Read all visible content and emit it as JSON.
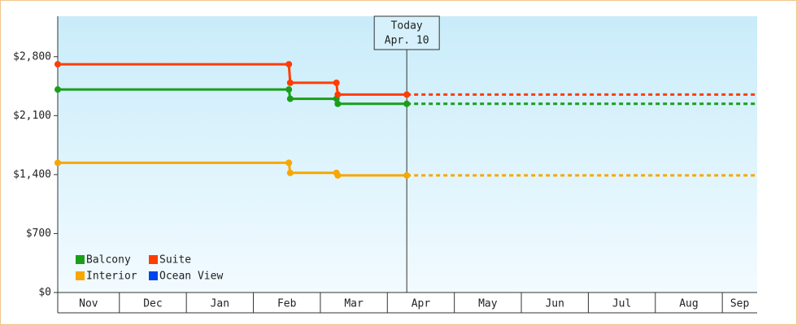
{
  "chart_data": {
    "type": "line",
    "xlim": [
      -0.92,
      9.52
    ],
    "xticks": [
      {
        "value": -1,
        "label": "Nov"
      },
      {
        "value": 0,
        "label": "Dec"
      },
      {
        "value": 1,
        "label": "Jan"
      },
      {
        "value": 2,
        "label": "Feb"
      },
      {
        "value": 3,
        "label": "Mar"
      },
      {
        "value": 4,
        "label": "Apr"
      },
      {
        "value": 5,
        "label": "May"
      },
      {
        "value": 6,
        "label": "Jun"
      },
      {
        "value": 7,
        "label": "Jul"
      },
      {
        "value": 8,
        "label": "Aug"
      },
      {
        "value": 9,
        "label": "Sep"
      }
    ],
    "ylim": [
      0,
      3280
    ],
    "yticks": [
      {
        "value": 0,
        "label": "$0"
      },
      {
        "value": 700,
        "label": "$700"
      },
      {
        "value": 1400,
        "label": "$1,400"
      },
      {
        "value": 2100,
        "label": "$2,100"
      },
      {
        "value": 2800,
        "label": "$2,800"
      }
    ],
    "today": {
      "x": 4.29,
      "label": "Today",
      "date": "Apr. 10"
    },
    "legend": "bottom-left",
    "series": [
      {
        "name": "Balcony",
        "color": "#1a9e1a",
        "x": [
          -0.92,
          2.53,
          2.55,
          3.24,
          3.26,
          4.29
        ],
        "values": [
          2410,
          2410,
          2300,
          2300,
          2240,
          2240
        ]
      },
      {
        "name": "Suite",
        "color": "#ff3d00",
        "x": [
          -0.92,
          2.53,
          2.55,
          3.24,
          3.26,
          4.29
        ],
        "values": [
          2710,
          2710,
          2490,
          2490,
          2350,
          2350
        ]
      },
      {
        "name": "Interior",
        "color": "#f7a700",
        "x": [
          -0.92,
          2.53,
          2.55,
          3.24,
          3.26,
          4.29
        ],
        "values": [
          1540,
          1540,
          1420,
          1420,
          1390,
          1390
        ]
      },
      {
        "name": "Ocean View",
        "color": "#0044ee",
        "x": [],
        "values": []
      }
    ]
  }
}
